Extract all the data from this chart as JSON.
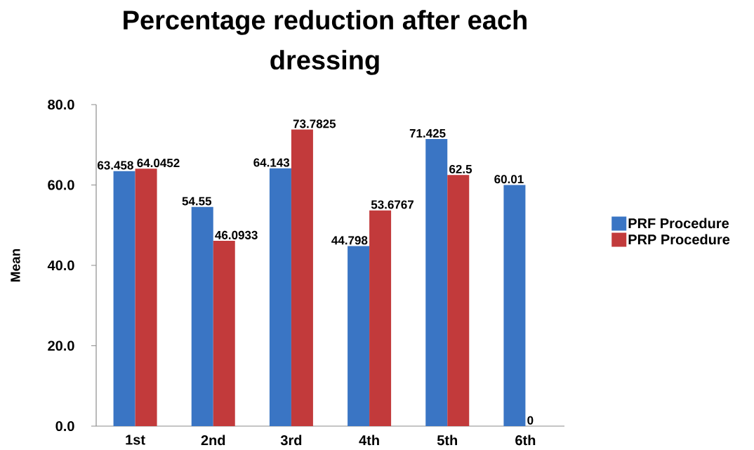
{
  "chart_data": {
    "type": "bar",
    "title": "Percentage reduction after each dressing",
    "ylabel": "Mean",
    "categories": [
      "1st",
      "2nd",
      "3rd",
      "4th",
      "5th",
      "6th"
    ],
    "series": [
      {
        "name": "PRF Procedure",
        "color": "#3a75c4",
        "values": [
          63.458,
          54.55,
          64.143,
          44.798,
          71.425,
          60.01
        ],
        "value_labels": [
          "63.458",
          "54.55",
          "64.143",
          "44.798",
          "71.425",
          "60.01"
        ]
      },
      {
        "name": "PRP Procedure",
        "color": "#c23a3b",
        "values": [
          64.0452,
          46.0933,
          73.7825,
          53.6767,
          62.5,
          0
        ],
        "value_labels": [
          "64.0452",
          "46.0933",
          "73.7825",
          "53.6767",
          "62.5",
          "0"
        ]
      }
    ],
    "ylim": [
      0,
      80
    ],
    "yticks": [
      {
        "value": 0,
        "label": "0.0"
      },
      {
        "value": 20,
        "label": "20.0"
      },
      {
        "value": 40,
        "label": "40.0"
      },
      {
        "value": 60,
        "label": "60.0"
      },
      {
        "value": 80,
        "label": "80.0"
      }
    ],
    "legend": "right"
  }
}
